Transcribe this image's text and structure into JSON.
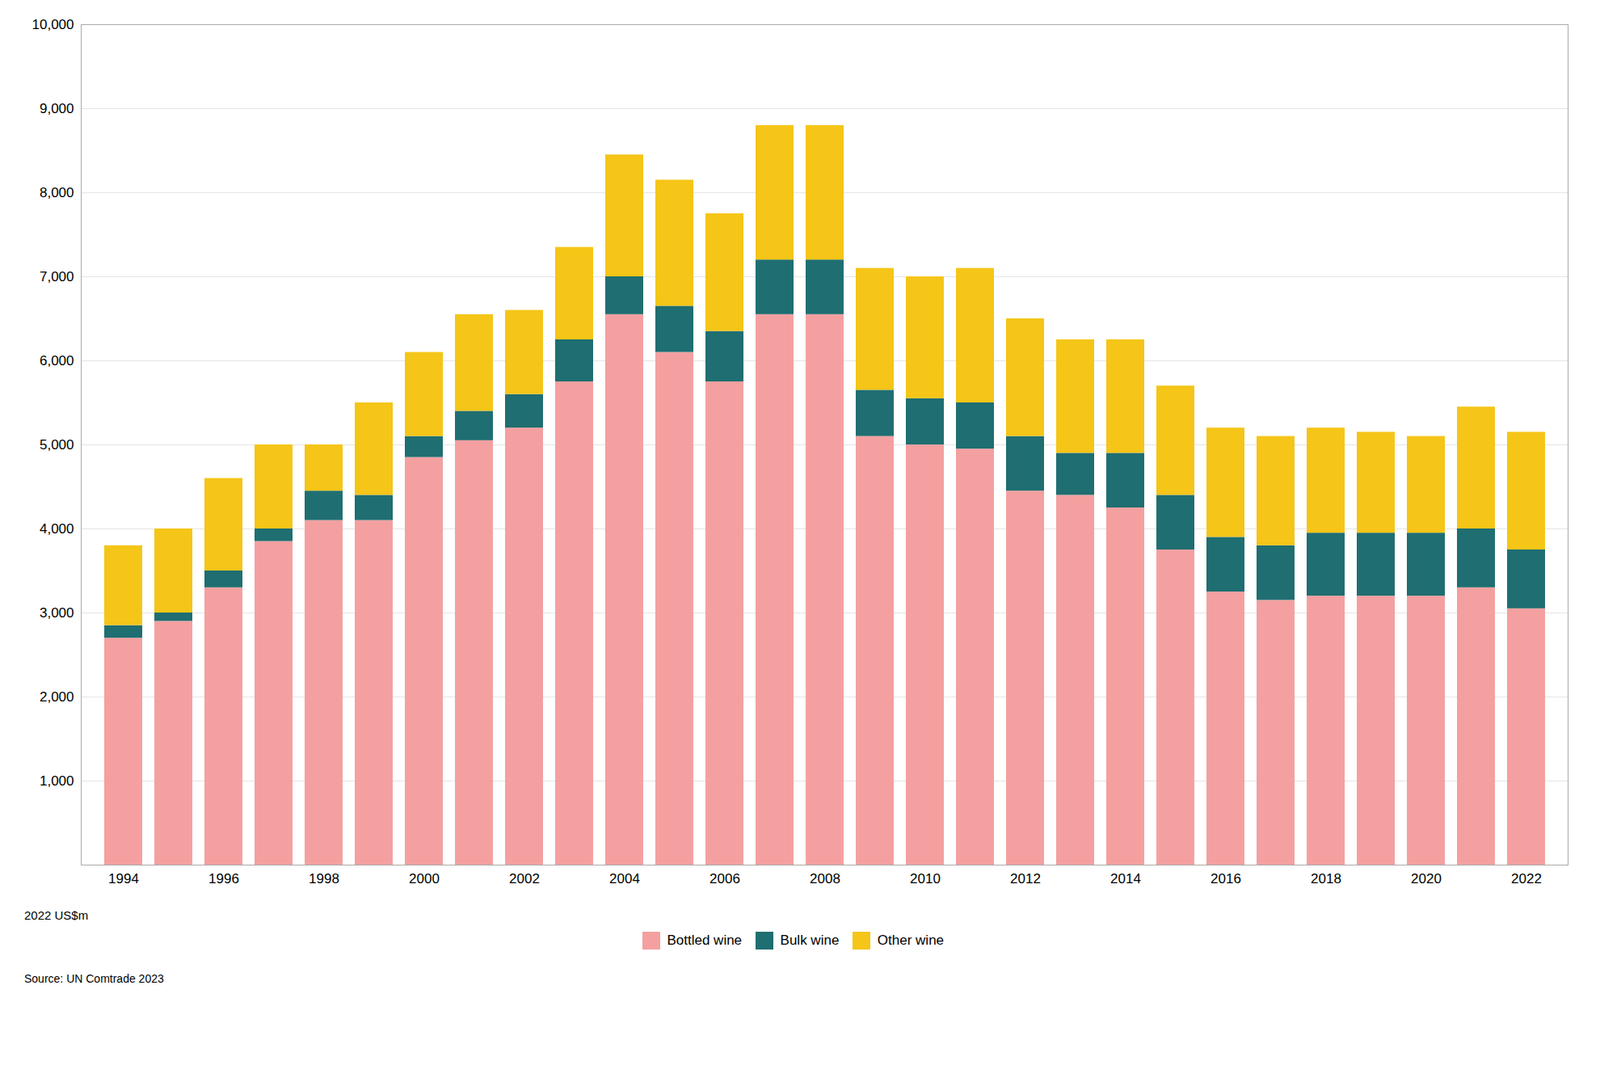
{
  "chart_data": {
    "type": "bar",
    "stacked": true,
    "ylabel": "2022 US$m",
    "caption": "Source: UN Comtrade 2023",
    "categories": [
      "1994",
      null,
      "1996",
      null,
      "1998",
      null,
      "2000",
      null,
      "2002",
      null,
      "2004",
      null,
      "2006",
      null,
      "2008",
      null,
      "2010",
      null,
      "2012",
      null,
      "2014",
      null,
      "2016",
      null,
      "2018",
      null,
      "2020",
      null,
      "2022"
    ],
    "series": [
      {
        "name": "Bottled wine",
        "color": "#F4A0A0",
        "values": [
          2700,
          2900,
          3300,
          3850,
          4100,
          4100,
          4850,
          5050,
          5200,
          5750,
          6550,
          6100,
          5750,
          6550,
          6550,
          5100,
          5000,
          4950,
          4450,
          4400,
          4250,
          3750,
          3250,
          3150,
          3200,
          3200,
          3200,
          3300,
          3050
        ]
      },
      {
        "name": "Bulk wine",
        "color": "#1F6E71",
        "values": [
          150,
          100,
          200,
          150,
          350,
          300,
          250,
          350,
          400,
          500,
          450,
          550,
          600,
          650,
          650,
          550,
          550,
          550,
          650,
          500,
          650,
          650,
          650,
          650,
          750,
          750,
          750,
          700,
          700
        ]
      },
      {
        "name": "Other wine",
        "color": "#F5C518",
        "values": [
          950,
          1000,
          1100,
          1000,
          550,
          1100,
          1000,
          1150,
          1000,
          1100,
          1450,
          1500,
          1400,
          1600,
          1600,
          1450,
          1450,
          1600,
          1400,
          1350,
          1350,
          1300,
          1300,
          1300,
          1250,
          1200,
          1150,
          1450,
          1400
        ]
      }
    ],
    "ylim": [
      0,
      10000
    ],
    "yticks": [
      {
        "value": 1000,
        "label": "1,000"
      },
      {
        "value": 2000,
        "label": "2,000"
      },
      {
        "value": 3000,
        "label": "3,000"
      },
      {
        "value": 4000,
        "label": "4,000"
      },
      {
        "value": 5000,
        "label": "5,000"
      },
      {
        "value": 6000,
        "label": "6,000"
      },
      {
        "value": 7000,
        "label": "7,000"
      },
      {
        "value": 8000,
        "label": "8,000"
      },
      {
        "value": 9000,
        "label": "9,000"
      },
      {
        "value": 10000,
        "label": "10,000"
      }
    ],
    "grid": true,
    "legend": "bottom"
  }
}
